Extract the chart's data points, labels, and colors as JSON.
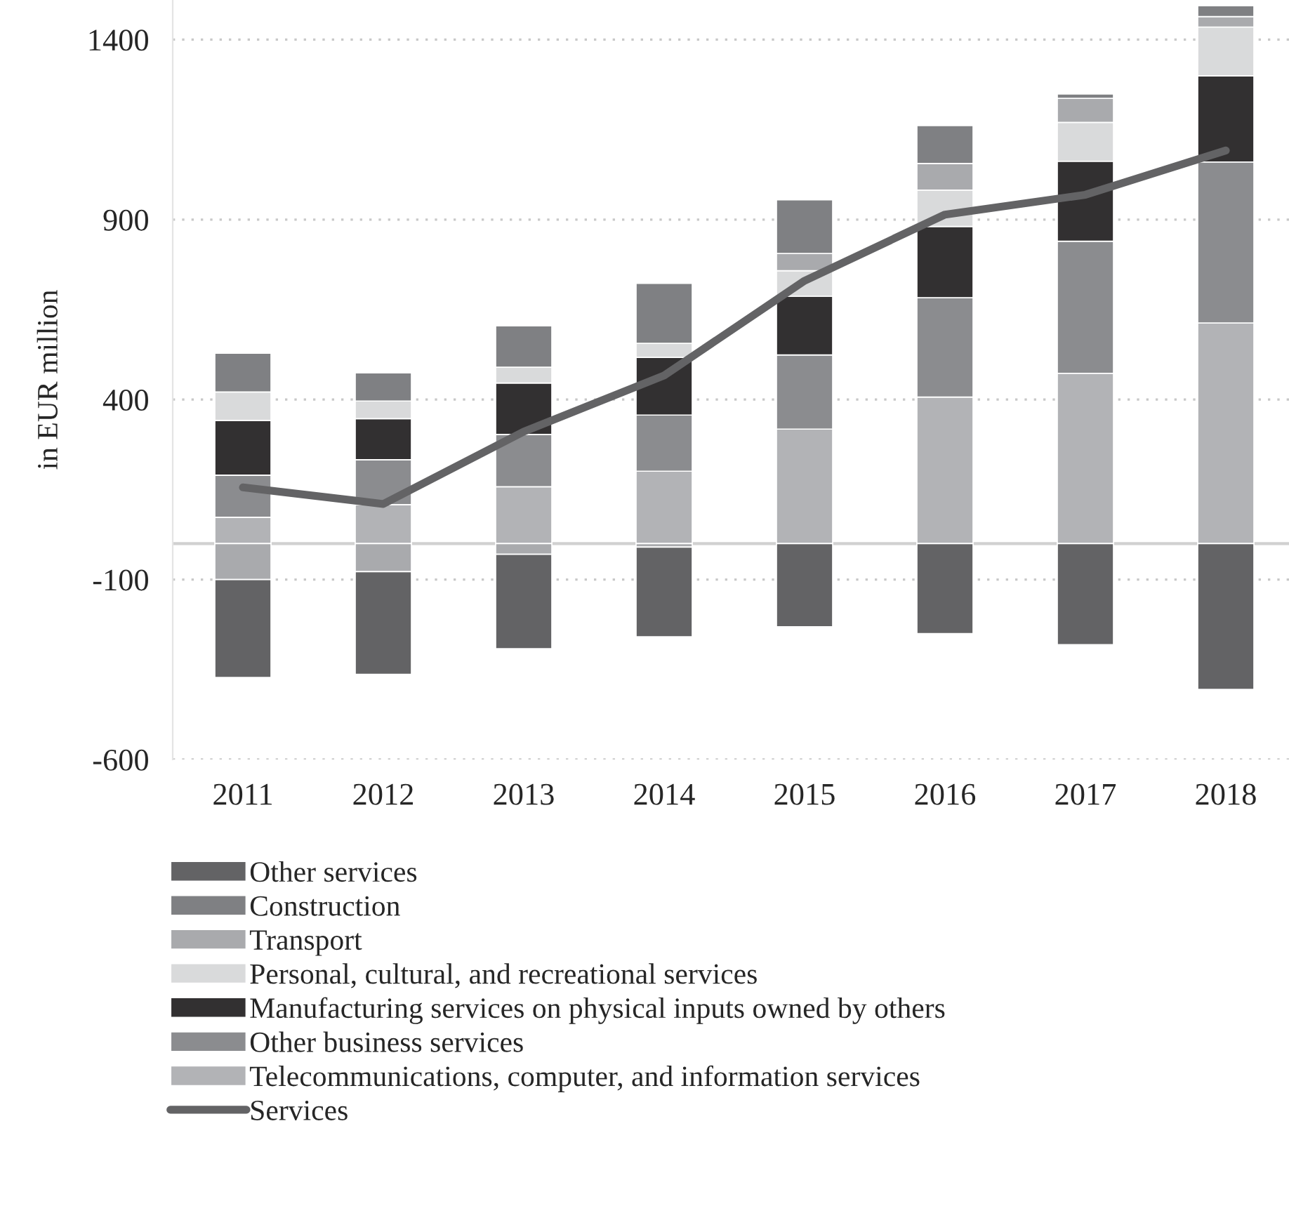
{
  "chart_data": {
    "type": "bar",
    "stacked": true,
    "ylabel": "in EUR million",
    "categories": [
      "2011",
      "2012",
      "2013",
      "2014",
      "2015",
      "2016",
      "2017",
      "2018"
    ],
    "series": [
      {
        "name": "Telecommunications, computer, and information services",
        "color": "#b2b3b6",
        "values": [
          73,
          108,
          158,
          201,
          318,
          407,
          473,
          613
        ]
      },
      {
        "name": "Other business services",
        "color": "#8b8c8f",
        "values": [
          117,
          125,
          145,
          156,
          206,
          276,
          367,
          447
        ]
      },
      {
        "name": "Manufacturing services on physical inputs owned by others",
        "color": "#323031",
        "values": [
          152,
          114,
          143,
          160,
          163,
          198,
          222,
          239
        ]
      },
      {
        "name": "Personal, cultural, and recreational services",
        "color": "#d9dadb",
        "values": [
          79,
          49,
          44,
          39,
          71,
          101,
          108,
          136
        ]
      },
      {
        "name": "Transport",
        "color": "#a9aaad",
        "values": [
          -100,
          -78,
          -30,
          -10,
          48,
          74,
          67,
          29
        ]
      },
      {
        "name": "Construction",
        "color": "#7f8083",
        "values": [
          108,
          78,
          115,
          167,
          149,
          105,
          12,
          30
        ]
      },
      {
        "name": "Other services",
        "color": "#636365",
        "values": [
          -272,
          -285,
          -262,
          -249,
          -231,
          -250,
          -281,
          -405
        ]
      },
      {
        "name": "Services",
        "type": "line",
        "color": "#636365",
        "values": [
          156,
          110,
          311,
          467,
          730,
          914,
          969,
          1092
        ]
      }
    ],
    "ylim": [
      -600,
      1510
    ],
    "yticks": [
      -600,
      -100,
      400,
      900,
      1400
    ],
    "grid": "y",
    "legend": "bottom"
  }
}
